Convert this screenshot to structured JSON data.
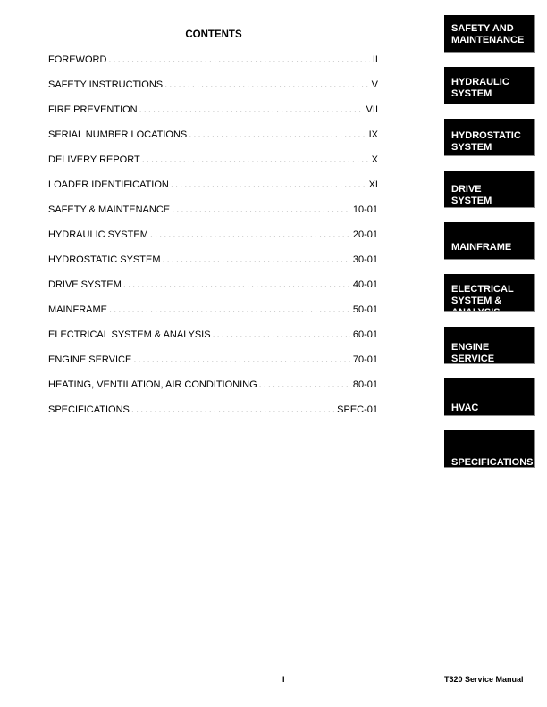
{
  "title": "CONTENTS",
  "toc": [
    {
      "label": "FOREWORD",
      "page": "II"
    },
    {
      "label": "SAFETY INSTRUCTIONS",
      "page": "V"
    },
    {
      "label": "FIRE PREVENTION",
      "page": "VII"
    },
    {
      "label": "SERIAL NUMBER LOCATIONS",
      "page": "IX"
    },
    {
      "label": "DELIVERY REPORT",
      "page": "X"
    },
    {
      "label": "LOADER IDENTIFICATION",
      "page": "XI"
    },
    {
      "label": "SAFETY & MAINTENANCE",
      "page": "10-01"
    },
    {
      "label": "HYDRAULIC SYSTEM",
      "page": "20-01"
    },
    {
      "label": "HYDROSTATIC SYSTEM",
      "page": "30-01"
    },
    {
      "label": "DRIVE SYSTEM",
      "page": "40-01"
    },
    {
      "label": "MAINFRAME",
      "page": "50-01"
    },
    {
      "label": "ELECTRICAL SYSTEM & ANALYSIS",
      "page": "60-01"
    },
    {
      "label": "ENGINE SERVICE",
      "page": "70-01"
    },
    {
      "label": "HEATING, VENTILATION, AIR CONDITIONING",
      "page": "80-01"
    },
    {
      "label": "SPECIFICATIONS",
      "page": "SPEC-01"
    }
  ],
  "tabs": [
    "SAFETY AND\nMAINTENANCE",
    "HYDRAULIC\nSYSTEM",
    "HYDROSTATIC\nSYSTEM",
    "DRIVE\nSYSTEM",
    "MAINFRAME",
    "ELECTRICAL\nSYSTEM &\nANALYSIS",
    "ENGINE\nSERVICE",
    "HVAC",
    "SPECIFICATIONS"
  ],
  "footer": {
    "page": "I",
    "manual": "T320 Service Manual"
  }
}
